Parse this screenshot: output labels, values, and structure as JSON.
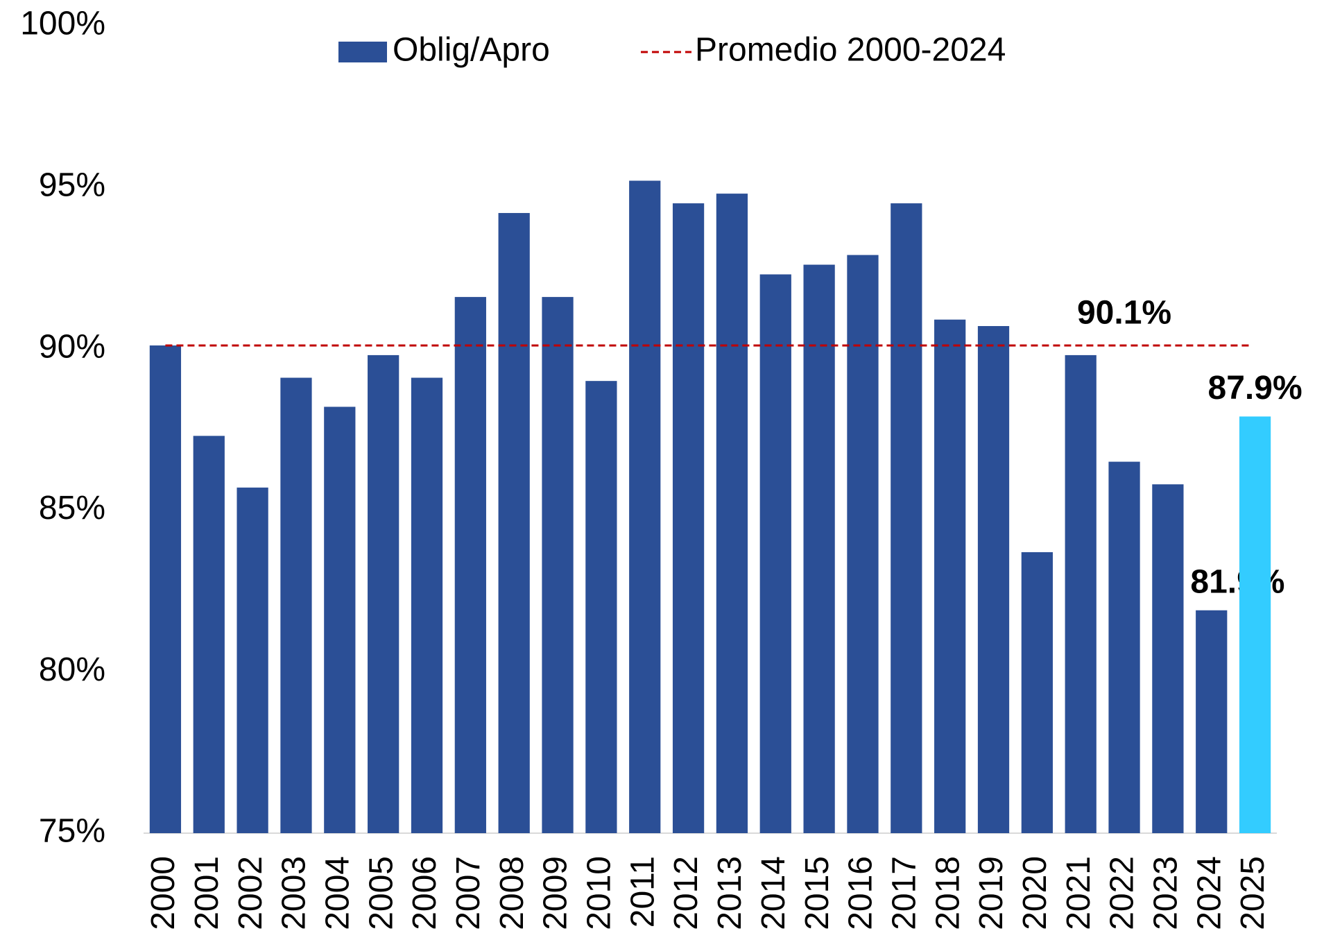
{
  "chart_data": {
    "type": "bar",
    "categories": [
      "2000",
      "2001",
      "2002",
      "2003",
      "2004",
      "2005",
      "2006",
      "2007",
      "2008",
      "2009",
      "2010",
      "2011",
      "2012",
      "2013",
      "2014",
      "2015",
      "2016",
      "2017",
      "2018",
      "2019",
      "2020",
      "2021",
      "2022",
      "2023",
      "2024",
      "2025"
    ],
    "series": [
      {
        "name": "Oblig/Apro",
        "color": "#2b4f96",
        "colors": [
          "#2b4f96",
          "#2b4f96",
          "#2b4f96",
          "#2b4f96",
          "#2b4f96",
          "#2b4f96",
          "#2b4f96",
          "#2b4f96",
          "#2b4f96",
          "#2b4f96",
          "#2b4f96",
          "#2b4f96",
          "#2b4f96",
          "#2b4f96",
          "#2b4f96",
          "#2b4f96",
          "#2b4f96",
          "#2b4f96",
          "#2b4f96",
          "#2b4f96",
          "#2b4f96",
          "#2b4f96",
          "#2b4f96",
          "#2b4f96",
          "#2b4f96",
          "#33ccff"
        ],
        "values": [
          90.1,
          87.3,
          85.7,
          89.1,
          88.2,
          89.8,
          89.1,
          91.6,
          94.2,
          91.6,
          89.0,
          95.2,
          94.5,
          94.8,
          92.3,
          92.6,
          92.9,
          94.5,
          90.9,
          90.7,
          83.7,
          89.8,
          86.5,
          85.8,
          81.9,
          87.9
        ],
        "value_labels": [
          null,
          null,
          null,
          null,
          null,
          null,
          null,
          null,
          null,
          null,
          null,
          null,
          null,
          null,
          null,
          null,
          null,
          null,
          null,
          null,
          null,
          null,
          null,
          null,
          "81.9%",
          "87.9%"
        ]
      },
      {
        "name": "Promedio 2000-2024",
        "type": "line",
        "color": "#c00000",
        "dashed": true,
        "value": 90.1,
        "value_label": "90.1%"
      }
    ],
    "ylim": [
      75,
      100
    ],
    "yticks": [
      {
        "value": 75,
        "label": "75%"
      },
      {
        "value": 80,
        "label": "80%"
      },
      {
        "value": 85,
        "label": "85%"
      },
      {
        "value": 90,
        "label": "90%"
      },
      {
        "value": 95,
        "label": "95%"
      },
      {
        "value": 100,
        "label": "100%"
      }
    ],
    "grid": false
  }
}
